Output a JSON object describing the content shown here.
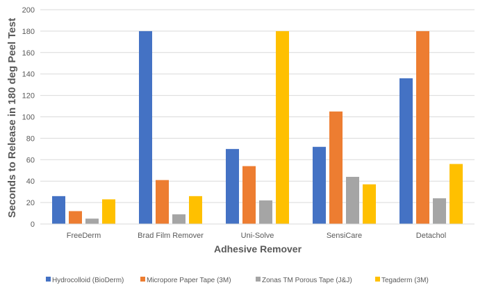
{
  "chart_data": {
    "type": "bar",
    "title": "",
    "xlabel": "Adhesive Remover",
    "ylabel": "Seconds to Release in 180 deg Peel Test",
    "ylim": [
      0,
      200
    ],
    "yticks": [
      0,
      20,
      40,
      60,
      80,
      100,
      120,
      140,
      160,
      180,
      200
    ],
    "grid": true,
    "legend_position": "bottom",
    "categories": [
      "FreeDerm",
      "Brad Film Remover",
      "Uni-Solve",
      "SensiCare",
      "Detachol"
    ],
    "series": [
      {
        "name": "Hydrocolloid (BioDerm)",
        "color": "#4472c4",
        "values": [
          26,
          180,
          70,
          72,
          136
        ]
      },
      {
        "name": "Micropore Paper Tape (3M)",
        "color": "#ed7d31",
        "values": [
          12,
          41,
          54,
          105,
          180
        ]
      },
      {
        "name": "Zonas TM Porous Tape (J&J)",
        "color": "#a5a5a5",
        "values": [
          5,
          9,
          22,
          44,
          24
        ]
      },
      {
        "name": "Tegaderm (3M)",
        "color": "#ffc000",
        "values": [
          23,
          26,
          180,
          37,
          56
        ]
      }
    ]
  }
}
